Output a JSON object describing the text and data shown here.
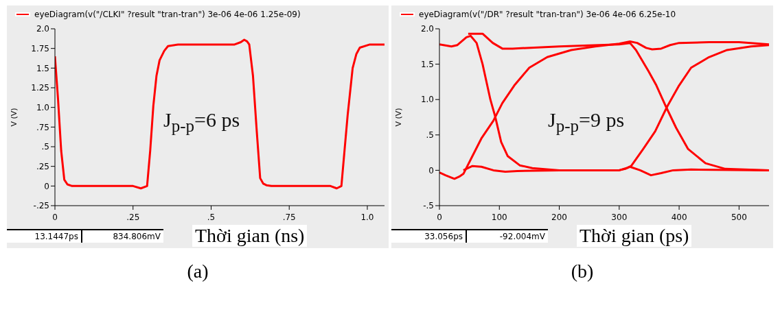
{
  "chart_data": [
    {
      "type": "line",
      "xlabel": "Thời gian (ns)",
      "ylabel": "V (V)",
      "legend": "top left",
      "xlim": [
        0,
        1.055
      ],
      "xticks": [
        0,
        {
          "value": 0.25,
          "label": ".25"
        },
        {
          "value": 0.5,
          "label": ".5"
        },
        {
          "value": 0.75,
          "label": ".75"
        },
        {
          "value": 1,
          "label": "1.0"
        }
      ],
      "ylim": [
        -0.25,
        2
      ],
      "yticks": [
        {
          "value": -0.25,
          "label": "-.25"
        },
        0,
        {
          "value": 0.25,
          "label": ".25"
        },
        {
          "value": 0.5,
          "label": ".5"
        },
        {
          "value": 0.75,
          "label": ".75"
        },
        {
          "value": 1,
          "label": "1.0"
        },
        {
          "value": 1.25,
          "label": "1.25"
        },
        {
          "value": 1.5,
          "label": "1.5"
        },
        {
          "value": 1.75,
          "label": "1.75"
        },
        {
          "value": 2,
          "label": "2.0"
        }
      ],
      "series": [
        {
          "name": "eyeDiagram(v(\"/CLKI\" ?result \"tran-tran\") 3e-06 4e-06 1.25e-09)",
          "color": "#ff0000",
          "x": [
            0,
            0.01,
            0.02,
            0.03,
            0.04,
            0.055,
            0.1,
            0.2,
            0.25,
            0.275,
            0.295,
            0.305,
            0.315,
            0.325,
            0.335,
            0.35,
            0.362,
            0.394,
            0.5,
            0.575,
            0.595,
            0.606,
            0.615,
            0.622,
            0.634,
            0.646,
            0.657,
            0.667,
            0.677,
            0.693,
            0.8,
            0.882,
            0.902,
            0.917,
            0.927,
            0.937,
            0.953,
            0.965,
            0.976,
            1.008,
            1.055
          ],
          "values": [
            1.65,
            1.1,
            0.45,
            0.08,
            0.02,
            0,
            0,
            0,
            0,
            -0.03,
            0,
            0.45,
            1.02,
            1.4,
            1.6,
            1.72,
            1.78,
            1.8,
            1.8,
            1.8,
            1.83,
            1.86,
            1.84,
            1.8,
            1.4,
            0.7,
            0.1,
            0.03,
            0.01,
            0,
            0,
            0,
            -0.03,
            0,
            0.45,
            0.9,
            1.5,
            1.68,
            1.76,
            1.8,
            1.8
          ]
        }
      ],
      "annotations": [
        "J$_{p-p}$=6 ps",
        "13.1447ps",
        "834.806mV",
        "(a)"
      ]
    },
    {
      "type": "line",
      "xlabel": "Thời gian (ps)",
      "ylabel": "V (V)",
      "legend": "top left",
      "xlim": [
        0,
        550
      ],
      "xticks": [
        0,
        100,
        200,
        300,
        400,
        500
      ],
      "ylim": [
        -0.5,
        2
      ],
      "yticks": [
        {
          "value": -0.5,
          "label": "-.5"
        },
        0,
        {
          "value": 0.5,
          "label": ".5"
        },
        {
          "value": 1,
          "label": "1.0"
        },
        {
          "value": 1.5,
          "label": "1.5"
        },
        {
          "value": 2,
          "label": "2.0"
        }
      ],
      "series": [
        {
          "name": "eyeDiagram(v(\"/DR\" ?result \"tran-tran\") 3e-06 4e-06 6.25e-10",
          "color": "#ff0000",
          "x": [
            0,
            20,
            30,
            45,
            52,
            62,
            72,
            85,
            93,
            103,
            114,
            134,
            155,
            200,
            300,
            312,
            318,
            335,
            353,
            370,
            390,
            420,
            550
          ],
          "values": [
            1.78,
            1.75,
            1.77,
            1.88,
            1.9,
            1.8,
            1.5,
            1,
            0.76,
            0.4,
            0.2,
            0.07,
            0.03,
            0,
            0,
            0.03,
            0.05,
            0,
            -0.07,
            -0.04,
            0,
            0.01,
            0
          ]
        },
        {
          "color": "#ff0000",
          "x": [
            0,
            10,
            25,
            33,
            40,
            55,
            70,
            90,
            105,
            125,
            150,
            180,
            220,
            260,
            300,
            318,
            330,
            345,
            355,
            370,
            385,
            400,
            450,
            500,
            550
          ],
          "values": [
            -0.03,
            -0.07,
            -0.12,
            -0.09,
            -0.05,
            0.2,
            0.45,
            0.7,
            0.95,
            1.2,
            1.45,
            1.6,
            1.7,
            1.75,
            1.79,
            1.82,
            1.8,
            1.73,
            1.71,
            1.72,
            1.77,
            1.8,
            1.81,
            1.81,
            1.78
          ]
        },
        {
          "color": "#ff0000",
          "x": [
            48,
            72,
            89,
            105,
            122,
            200,
            300,
            318,
            328,
            349,
            362,
            378,
            395,
            415,
            444,
            477,
            550
          ],
          "values": [
            1.93,
            1.93,
            1.8,
            1.72,
            1.72,
            1.75,
            1.78,
            1.8,
            1.7,
            1.4,
            1.2,
            0.9,
            0.6,
            0.3,
            0.1,
            0.02,
            0
          ]
        },
        {
          "color": "#ff0000",
          "x": [
            40,
            55,
            70,
            90,
            110,
            130,
            200,
            300,
            310,
            320,
            340,
            360,
            380,
            400,
            420,
            450,
            480,
            520,
            550
          ],
          "values": [
            0,
            0.06,
            0.05,
            0,
            -0.02,
            -0.01,
            0,
            0,
            0.02,
            0.06,
            0.3,
            0.55,
            0.9,
            1.2,
            1.45,
            1.6,
            1.7,
            1.75,
            1.77
          ]
        }
      ],
      "annotations": [
        "J$_{p-p}$=9 ps",
        "33.056ps",
        "-92.004mV",
        "(b)"
      ]
    }
  ]
}
